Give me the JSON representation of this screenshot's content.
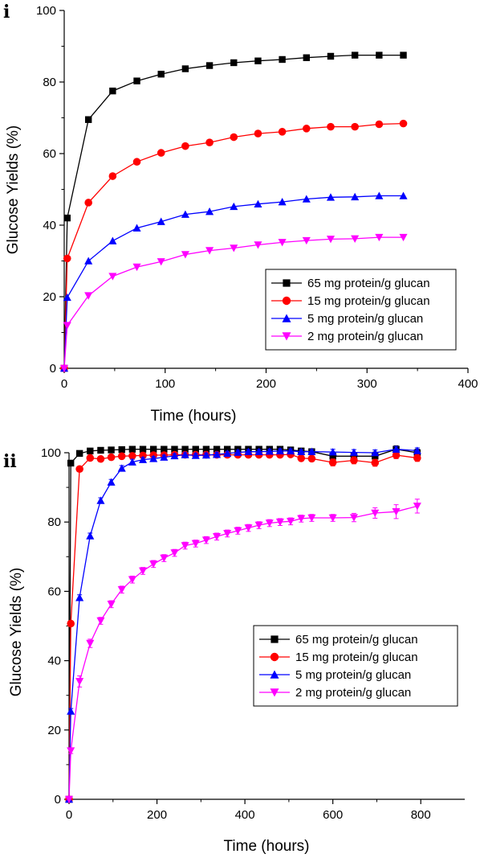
{
  "charts": [
    {
      "panel": "i",
      "type": "line",
      "xlabel": "Time (hours)",
      "ylabel": "Glucose Yields (%)",
      "xlim": [
        0,
        400
      ],
      "ylim": [
        0,
        100
      ],
      "xticks": [
        0,
        100,
        200,
        300,
        400
      ],
      "yticks": [
        0,
        20,
        40,
        60,
        80,
        100
      ],
      "legend_position": "right-middle",
      "grid": false,
      "series": [
        {
          "name": "65 mg protein/g glucan",
          "color": "#000000",
          "marker": "square",
          "x": [
            0,
            3,
            24,
            48,
            72,
            96,
            120,
            144,
            168,
            192,
            216,
            240,
            264,
            288,
            312,
            336
          ],
          "y": [
            0,
            42,
            69.5,
            77.5,
            80.3,
            82.2,
            83.7,
            84.6,
            85.4,
            85.9,
            86.3,
            86.8,
            87.2,
            87.5,
            87.5,
            87.5
          ]
        },
        {
          "name": "15 mg protein/g glucan",
          "color": "#ff0000",
          "marker": "circle",
          "x": [
            0,
            3,
            24,
            48,
            72,
            96,
            120,
            144,
            168,
            192,
            216,
            240,
            264,
            288,
            312,
            336
          ],
          "y": [
            0,
            30.7,
            46.3,
            53.7,
            57.7,
            60.2,
            62.1,
            63.1,
            64.6,
            65.6,
            66.1,
            67,
            67.5,
            67.5,
            68.2,
            68.4
          ]
        },
        {
          "name": "5 mg protein/g glucan",
          "color": "#0000ff",
          "marker": "triangle-up",
          "x": [
            0,
            3,
            24,
            48,
            72,
            96,
            120,
            144,
            168,
            192,
            216,
            240,
            264,
            288,
            312,
            336
          ],
          "y": [
            0,
            19.8,
            30,
            35.6,
            39.2,
            41,
            43,
            43.8,
            45.2,
            45.9,
            46.5,
            47.3,
            47.8,
            47.9,
            48.2,
            48.2
          ]
        },
        {
          "name": "2 mg protein/g glucan",
          "color": "#ff00ff",
          "marker": "triangle-down",
          "x": [
            0,
            3,
            24,
            48,
            72,
            96,
            120,
            144,
            168,
            192,
            216,
            240,
            264,
            288,
            312,
            336
          ],
          "y": [
            0,
            12,
            20.3,
            25.7,
            28.3,
            29.8,
            31.8,
            32.9,
            33.6,
            34.5,
            35.2,
            35.7,
            36.1,
            36.2,
            36.6,
            36.6
          ]
        }
      ]
    },
    {
      "panel": "ii",
      "type": "line",
      "xlabel": "Time (hours)",
      "ylabel": "Glucose Yields (%)",
      "xlim": [
        0,
        900
      ],
      "ylim": [
        0,
        100
      ],
      "xticks": [
        0,
        200,
        400,
        600,
        800
      ],
      "yticks": [
        0,
        20,
        40,
        60,
        80,
        100
      ],
      "legend_position": "right-middle",
      "grid": false,
      "series": [
        {
          "name": "65 mg protein/g glucan",
          "color": "#000000",
          "marker": "square",
          "x": [
            0,
            4,
            24,
            48,
            72,
            96,
            120,
            144,
            168,
            192,
            216,
            240,
            264,
            288,
            312,
            336,
            360,
            384,
            408,
            432,
            456,
            480,
            504,
            528,
            552,
            600,
            648,
            696,
            744,
            792
          ],
          "y": [
            0,
            97,
            99.8,
            100.5,
            100.7,
            100.8,
            100.9,
            101,
            101,
            101,
            101,
            101,
            101,
            101,
            101,
            101,
            101,
            101,
            101,
            101,
            101,
            101,
            100.8,
            100.5,
            100.3,
            99,
            99,
            99,
            101,
            100
          ],
          "err": [
            0,
            0.5,
            0.5,
            0.5,
            0.5,
            0.5,
            0.5,
            0.5,
            0.5,
            0.5,
            0.5,
            0.5,
            0.5,
            0.5,
            0.5,
            0.5,
            0.5,
            0.5,
            0.5,
            0.5,
            0.5,
            0.5,
            0.8,
            0.8,
            0.8,
            1,
            1,
            1.2,
            1,
            1
          ]
        },
        {
          "name": "15 mg protein/g glucan",
          "color": "#ff0000",
          "marker": "circle",
          "x": [
            0,
            4,
            24,
            48,
            72,
            96,
            120,
            144,
            168,
            192,
            216,
            240,
            264,
            288,
            312,
            336,
            360,
            384,
            408,
            432,
            456,
            480,
            504,
            528,
            552,
            600,
            648,
            696,
            744,
            792
          ],
          "y": [
            0,
            50.7,
            95.3,
            98.5,
            98.2,
            98.7,
            99,
            99.1,
            99.2,
            99.3,
            99.3,
            99.4,
            99.4,
            99.4,
            99.4,
            99.4,
            99.4,
            99.4,
            99.4,
            99.4,
            99.4,
            99.4,
            99.5,
            98.4,
            98.3,
            97.2,
            97.8,
            97.1,
            99.3,
            98.5
          ],
          "err": [
            0,
            0.6,
            0.6,
            0.6,
            0.6,
            0.6,
            0.6,
            0.6,
            0.6,
            0.6,
            0.6,
            0.6,
            0.6,
            0.6,
            0.6,
            0.6,
            0.6,
            0.6,
            0.6,
            0.6,
            0.6,
            0.6,
            0.6,
            0.8,
            0.8,
            1,
            1,
            1,
            1,
            1
          ]
        },
        {
          "name": "5 mg protein/g glucan",
          "color": "#0000ff",
          "marker": "triangle-up",
          "x": [
            0,
            4,
            24,
            48,
            72,
            96,
            120,
            144,
            168,
            192,
            216,
            240,
            264,
            288,
            312,
            336,
            360,
            384,
            408,
            432,
            456,
            480,
            504,
            528,
            552,
            600,
            648,
            696,
            744,
            792
          ],
          "y": [
            0,
            25.4,
            58.2,
            76,
            86.2,
            91.5,
            95.5,
            97.3,
            98,
            98.3,
            98.7,
            99.1,
            99.4,
            99.2,
            99.3,
            99.5,
            99.8,
            100.1,
            100.3,
            100.3,
            100.4,
            100.5,
            100.5,
            100.3,
            100.3,
            100.2,
            100.1,
            100,
            101,
            100.6
          ],
          "err": [
            0,
            0.8,
            0.8,
            0.8,
            0.8,
            0.8,
            0.8,
            0.8,
            0.6,
            0.6,
            0.6,
            0.6,
            0.6,
            0.6,
            0.6,
            0.6,
            0.6,
            0.6,
            0.6,
            0.6,
            0.6,
            0.6,
            0.6,
            0.6,
            0.6,
            0.8,
            0.8,
            0.8,
            0.8,
            0.8
          ]
        },
        {
          "name": "2 mg protein/g glucan",
          "color": "#ff00ff",
          "marker": "triangle-down",
          "x": [
            0,
            4,
            24,
            48,
            72,
            96,
            120,
            144,
            168,
            192,
            216,
            240,
            264,
            288,
            312,
            336,
            360,
            384,
            408,
            432,
            456,
            480,
            504,
            528,
            552,
            600,
            648,
            696,
            744,
            792
          ],
          "y": [
            0,
            14,
            34,
            45,
            51.5,
            56.3,
            60.5,
            63.4,
            65.9,
            67.9,
            69.6,
            71.1,
            73.2,
            73.8,
            74.8,
            75.8,
            76.7,
            77.5,
            78.3,
            79.1,
            79.7,
            80,
            80.2,
            81,
            81.2,
            81.2,
            81.3,
            82.6,
            83,
            84.6
          ],
          "err": [
            0,
            0.8,
            1.6,
            1.2,
            1,
            1,
            1,
            1,
            1,
            1,
            1,
            1,
            1,
            1,
            1,
            1,
            1,
            1,
            1,
            1,
            1,
            1,
            1,
            1,
            1,
            1,
            1.2,
            1.5,
            2,
            2
          ]
        }
      ]
    }
  ]
}
